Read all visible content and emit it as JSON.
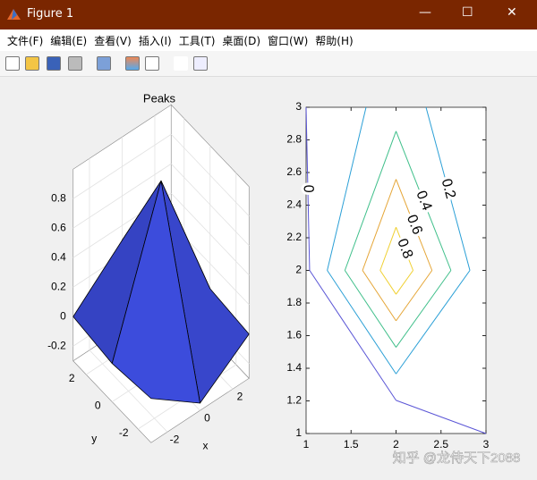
{
  "window": {
    "title": "Figure 1",
    "menu": [
      "文件(F)",
      "编辑(E)",
      "查看(V)",
      "插入(I)",
      "工具(T)",
      "桌面(D)",
      "窗口(W)",
      "帮助(H)"
    ]
  },
  "chart_data": [
    {
      "type": "surface",
      "title": "Peaks",
      "xlabel": "x",
      "ylabel": "y",
      "x": [
        -3,
        0,
        3
      ],
      "y": [
        -3,
        0,
        3
      ],
      "z": [
        [
          0,
          -0.25,
          0
        ],
        [
          -0.04,
          0.98,
          0.03
        ],
        [
          0,
          0.3,
          0
        ]
      ],
      "xlim": [
        -3,
        3
      ],
      "ylim": [
        -3,
        3
      ],
      "zlim": [
        -0.3,
        1
      ],
      "xticks": [
        -2,
        0,
        2
      ],
      "yticks": [
        -2,
        0,
        2
      ],
      "zticks": [
        -0.2,
        0,
        0.2,
        0.4,
        0.6,
        0.8
      ],
      "color": "#4658ff",
      "grid": true
    },
    {
      "type": "contour",
      "x": [
        1,
        2,
        3
      ],
      "y": [
        1,
        2,
        3
      ],
      "z": [
        [
          0,
          -0.25,
          0
        ],
        [
          -0.04,
          0.98,
          0.03
        ],
        [
          0,
          0.3,
          0
        ]
      ],
      "levels": [
        0,
        0.2,
        0.4,
        0.6,
        0.8
      ],
      "colors": [
        "#5a55d6",
        "#2a9fd6",
        "#3fbf8a",
        "#e5a535",
        "#f0d030"
      ],
      "xlim": [
        1,
        3
      ],
      "ylim": [
        1,
        3
      ],
      "xticks": [
        1,
        1.5,
        2,
        2.5,
        3
      ],
      "yticks": [
        1,
        1.2,
        1.4,
        1.6,
        1.8,
        2,
        2.2,
        2.4,
        2.6,
        2.8,
        3
      ]
    }
  ],
  "watermark": "知乎 @龙侍天下2088"
}
